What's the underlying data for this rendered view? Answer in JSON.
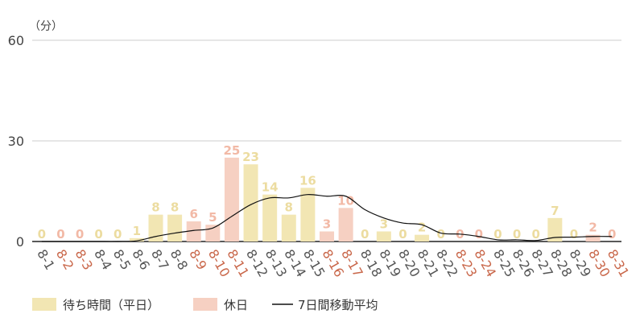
{
  "chart_data": {
    "type": "bar",
    "unit_label": "（分）",
    "ylim": [
      0,
      60
    ],
    "yticks": [
      0,
      30,
      60
    ],
    "grid": true,
    "legend_position": "bottom-left",
    "categories": [
      "8-1",
      "8-2",
      "8-3",
      "8-4",
      "8-5",
      "8-6",
      "8-7",
      "8-8",
      "8-9",
      "8-10",
      "8-11",
      "8-12",
      "8-13",
      "8-14",
      "8-15",
      "8-16",
      "8-17",
      "8-18",
      "8-19",
      "8-20",
      "8-21",
      "8-22",
      "8-23",
      "8-24",
      "8-25",
      "8-26",
      "8-27",
      "8-28",
      "8-29",
      "8-30",
      "8-31"
    ],
    "holiday": [
      false,
      true,
      true,
      false,
      false,
      false,
      false,
      false,
      true,
      true,
      true,
      false,
      false,
      false,
      false,
      true,
      true,
      false,
      false,
      false,
      false,
      false,
      true,
      true,
      false,
      false,
      false,
      false,
      false,
      true,
      true
    ],
    "values": [
      0,
      0,
      0,
      0,
      0,
      1,
      8,
      8,
      6,
      5,
      25,
      23,
      14,
      8,
      16,
      3,
      10,
      0,
      3,
      0,
      2,
      0,
      0,
      0,
      0,
      0,
      0,
      7,
      0,
      2,
      0
    ],
    "moving_average": [
      0,
      0,
      0,
      0,
      0,
      0.2,
      1.5,
      2.5,
      3.3,
      4,
      7.5,
      11,
      13,
      13,
      14,
      13.5,
      13.5,
      9.5,
      7,
      5.5,
      5,
      2.5,
      2.2,
      1.5,
      0.5,
      0.5,
      0.3,
      1.2,
      1.3,
      1.5,
      1.5
    ],
    "series": [
      {
        "name": "待ち時間（平日）",
        "color": "#f2e6b3",
        "label_color": "#ecdca0"
      },
      {
        "name": "休日",
        "color": "#f6d0c2",
        "label_color": "#f2b9a6"
      },
      {
        "name": "7日間移動平均",
        "color": "#111111"
      }
    ],
    "colors": {
      "holiday_tick": "#c9674a",
      "weekday_tick": "#555555",
      "grid": "#cccccc",
      "axis": "#222222"
    }
  }
}
